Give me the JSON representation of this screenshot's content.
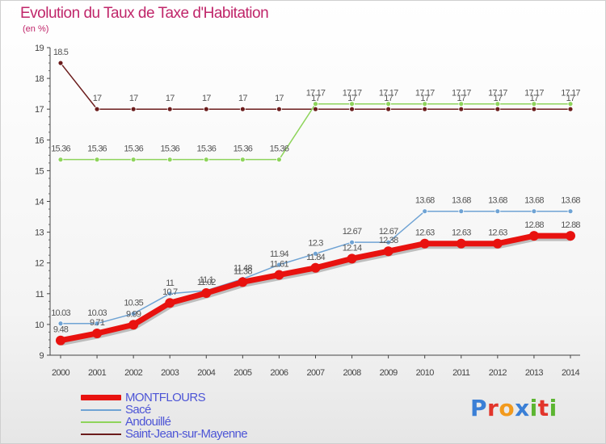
{
  "header": {
    "title": "Evolution du Taux de Taxe d'Habitation",
    "unit": "(en %)"
  },
  "logo": {
    "text": "Proxiti",
    "letters": [
      {
        "ch": "P",
        "color": "#3a7fd6"
      },
      {
        "ch": "r",
        "color": "#e2352b"
      },
      {
        "ch": "o",
        "color": "#f29a1d"
      },
      {
        "ch": "x",
        "color": "#3a7fd6"
      },
      {
        "ch": "i",
        "color": "#5cb531"
      },
      {
        "ch": "t",
        "color": "#e2352b"
      },
      {
        "ch": "i",
        "color": "#5cb531"
      }
    ]
  },
  "chart_data": {
    "type": "line",
    "title": "Evolution du Taux de Taxe d'Habitation",
    "ylabel": "(en %)",
    "xlabel": "",
    "x": [
      "2000",
      "2001",
      "2002",
      "2003",
      "2004",
      "2005",
      "2006",
      "2007",
      "2008",
      "2009",
      "2010",
      "2011",
      "2012",
      "2013",
      "2014"
    ],
    "y_ticks": [
      "9",
      "10",
      "11",
      "12",
      "13",
      "14",
      "15",
      "16",
      "17",
      "18",
      "19"
    ],
    "ylim": [
      9,
      19
    ],
    "grid": false,
    "legend_position": "bottom-left",
    "series": [
      {
        "name": "Saint-Jean-sur-Mayenne",
        "color": "#6b1c1c",
        "values": [
          18.5,
          17,
          17,
          17,
          17,
          17,
          17,
          17,
          17,
          17,
          17,
          17,
          17,
          17,
          17
        ],
        "labels": [
          "18.5",
          "17",
          "17",
          "17",
          "17",
          "17",
          "17",
          "17",
          "17",
          "17",
          "17",
          "17",
          "17",
          "17",
          "17"
        ]
      },
      {
        "name": "Andouillé",
        "color": "#8ed45b",
        "values": [
          15.36,
          15.36,
          15.36,
          15.36,
          15.36,
          15.36,
          15.36,
          17.17,
          17.17,
          17.17,
          17.17,
          17.17,
          17.17,
          17.17,
          17.17
        ],
        "labels": [
          "15.36",
          "15.36",
          "15.36",
          "15.36",
          "15.36",
          "15.36",
          "15.36",
          "17.17",
          "17.17",
          "17.17",
          "17.17",
          "17.17",
          "17.17",
          "17.17",
          "17.17"
        ]
      },
      {
        "name": "Sacé",
        "color": "#6fa3d4",
        "values": [
          10.03,
          10.03,
          10.35,
          11,
          11.1,
          11.48,
          11.94,
          12.3,
          12.67,
          12.67,
          13.68,
          13.68,
          13.68,
          13.68,
          13.68
        ],
        "labels": [
          "10.03",
          "10.03",
          "10.35",
          "11",
          "11.1",
          "11.48",
          "11.94",
          "12.3",
          "12.67",
          "12.67",
          "13.68",
          "13.68",
          "13.68",
          "13.68",
          "13.68"
        ]
      },
      {
        "name": "MONTFLOURS",
        "color": "#e8120f",
        "values": [
          9.48,
          9.71,
          9.99,
          10.7,
          11.02,
          11.38,
          11.61,
          11.84,
          12.14,
          12.38,
          12.63,
          12.63,
          12.63,
          12.88,
          12.88
        ],
        "labels": [
          "9.48",
          "9.71",
          "9.99",
          "10.7",
          "11.02",
          "11.38",
          "11.61",
          "11.84",
          "12.14",
          "12.38",
          "12.63",
          "12.63",
          "12.63",
          "12.88",
          "12.88"
        ]
      }
    ],
    "legend": [
      "MONTFLOURS",
      "Sacé",
      "Andouillé",
      "Saint-Jean-sur-Mayenne"
    ]
  }
}
